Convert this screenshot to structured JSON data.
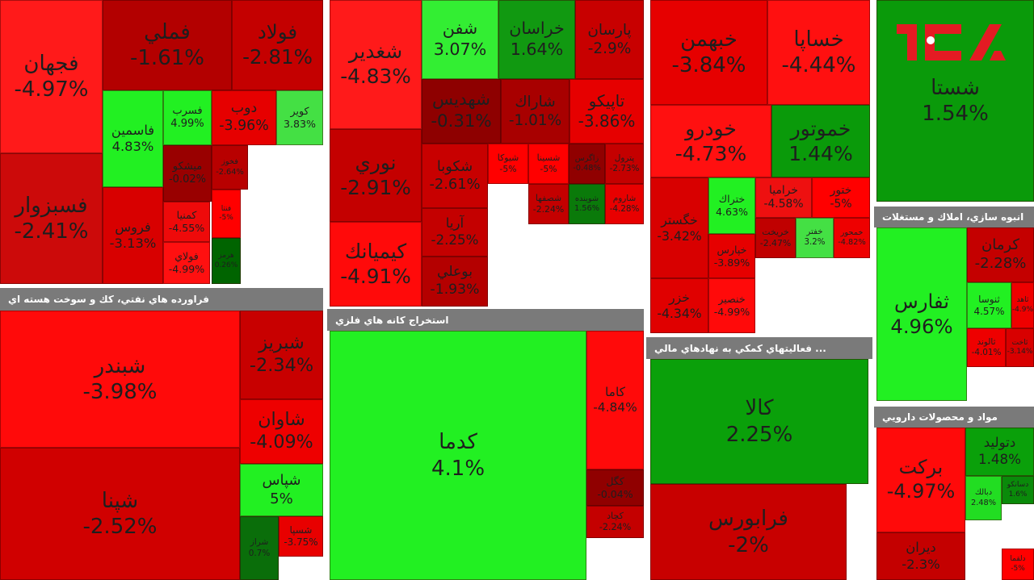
{
  "sections": [
    {
      "tiles": [
        {
          "name": "فجهان",
          "change": "-4.97%"
        },
        {
          "name": "فسبزوار",
          "change": "-2.41%"
        },
        {
          "name": "فملي",
          "change": "-1.61%"
        },
        {
          "name": "فولاد",
          "change": "-2.81%"
        },
        {
          "name": "فاسمين",
          "change": "4.83%"
        },
        {
          "name": "فسرب",
          "change": "4.99%"
        },
        {
          "name": "دوب",
          "change": "-3.96%"
        },
        {
          "name": "كوير",
          "change": "3.83%"
        },
        {
          "name": "فروس",
          "change": "-3.13%"
        },
        {
          "name": "ميشكو",
          "change": "-0.02%"
        },
        {
          "name": "فخوز",
          "change": "-2.64%"
        },
        {
          "name": "كمنيا",
          "change": "-4.55%"
        },
        {
          "name": "فولاي",
          "change": "-4.99%"
        },
        {
          "name": "فنتا",
          "change": "-5%"
        },
        {
          "name": "هرمز",
          "change": "0.26%"
        }
      ]
    },
    {
      "title": "فراورده هاي نفتي، كك و سوخت هسته اي",
      "tiles": [
        {
          "name": "شبندر",
          "change": "-3.98%"
        },
        {
          "name": "شپنا",
          "change": "-2.52%"
        },
        {
          "name": "شبريز",
          "change": "-2.34%"
        },
        {
          "name": "شاوان",
          "change": "-4.09%"
        },
        {
          "name": "شپاس",
          "change": "5%"
        },
        {
          "name": "شراز",
          "change": "0.7%"
        },
        {
          "name": "شسپا",
          "change": "-3.75%"
        }
      ]
    },
    {
      "tiles": [
        {
          "name": "شغدير",
          "change": "-4.83%"
        },
        {
          "name": "شفن",
          "change": "3.07%"
        },
        {
          "name": "خراسان",
          "change": "1.64%"
        },
        {
          "name": "پارسان",
          "change": "-2.9%"
        },
        {
          "name": "شهديس",
          "change": "-0.31%"
        },
        {
          "name": "شاراك",
          "change": "-1.01%"
        },
        {
          "name": "تاپيكو",
          "change": "-3.86%"
        },
        {
          "name": "نوري",
          "change": "-2.91%"
        },
        {
          "name": "شكوبا",
          "change": "-2.61%"
        },
        {
          "name": "شيوكا",
          "change": "-5%"
        },
        {
          "name": "شسينا",
          "change": "-5%"
        },
        {
          "name": "زاگرس",
          "change": "-0.48%"
        },
        {
          "name": "پترول",
          "change": "-2.73%"
        },
        {
          "name": "كيميانك",
          "change": "-4.91%"
        },
        {
          "name": "آريا",
          "change": "-2.25%"
        },
        {
          "name": "بوعلي",
          "change": "-1.93%"
        },
        {
          "name": "شوينده",
          "change": "1.56%"
        },
        {
          "name": "شاروم",
          "change": "-4.28%"
        },
        {
          "name": "شصفها",
          "change": "-2.24%"
        }
      ]
    },
    {
      "title": "استخراج كانه هاي فلزي",
      "tiles": [
        {
          "name": "كدما",
          "change": "4.1%"
        },
        {
          "name": "كاما",
          "change": "-4.84%"
        },
        {
          "name": "كگل",
          "change": "-0.04%"
        },
        {
          "name": "كچاد",
          "change": "-2.24%"
        }
      ]
    },
    {
      "tiles": [
        {
          "name": "خبهمن",
          "change": "-3.84%"
        },
        {
          "name": "خساپا",
          "change": "-4.44%"
        },
        {
          "name": "خودرو",
          "change": "-4.73%"
        },
        {
          "name": "خموتور",
          "change": "1.44%"
        },
        {
          "name": "خگستر",
          "change": "-3.42%"
        },
        {
          "name": "ختراك",
          "change": "4.63%"
        },
        {
          "name": "خراميا",
          "change": "-4.58%"
        },
        {
          "name": "ختور",
          "change": "-5%"
        },
        {
          "name": "خريخت",
          "change": "-2.47%"
        },
        {
          "name": "خفتر",
          "change": "3.2%"
        },
        {
          "name": "خمحور",
          "change": "-4.82%"
        },
        {
          "name": "خپارس",
          "change": "-3.89%"
        },
        {
          "name": "خزر",
          "change": "-4.34%"
        },
        {
          "name": "خنصير",
          "change": "-4.99%"
        }
      ]
    },
    {
      "title": "... فعاليتهاي كمكي به نهادهاي مالي",
      "tiles": [
        {
          "name": "كالا",
          "change": "2.25%"
        },
        {
          "name": "فرابورس",
          "change": "-2%"
        }
      ]
    },
    {
      "tiles": [
        {
          "name": "شستا",
          "change": "1.54%"
        }
      ]
    },
    {
      "title": "انبوه سازي، املاك و مستغلات",
      "tiles": [
        {
          "name": "ثفارس",
          "change": "4.96%"
        },
        {
          "name": "كرمان",
          "change": "-2.28%"
        },
        {
          "name": "ثنوسا",
          "change": "4.57%"
        },
        {
          "name": "ثاهد",
          "change": "-4.9%"
        },
        {
          "name": "ثالوند",
          "change": "-4.01%"
        },
        {
          "name": "ثاخت",
          "change": "-3.14%"
        }
      ]
    },
    {
      "title": "مواد و محصولات دارويي",
      "tiles": [
        {
          "name": "بركت",
          "change": "-4.97%"
        },
        {
          "name": "ديران",
          "change": "-2.3%"
        },
        {
          "name": "دتوليد",
          "change": "1.48%"
        },
        {
          "name": "دبالك",
          "change": "2.48%"
        },
        {
          "name": "دسانكو",
          "change": "1.6%"
        },
        {
          "name": "دلقما",
          "change": "-5%"
        }
      ]
    }
  ]
}
